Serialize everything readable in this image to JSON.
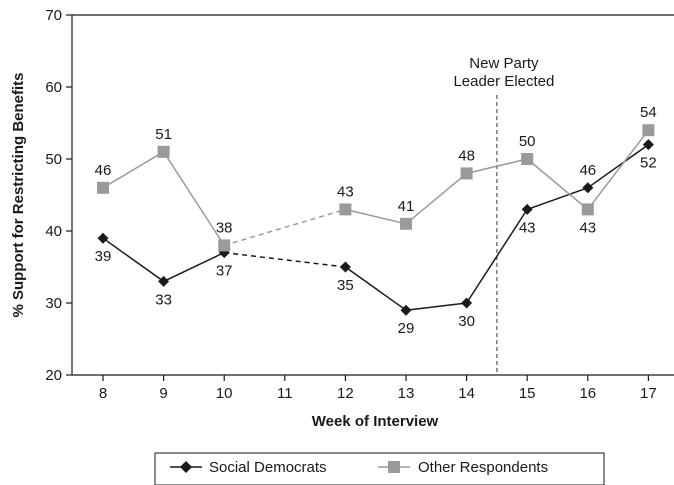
{
  "chart_data": {
    "type": "line",
    "xlabel": "Week of Interview",
    "ylabel": "% Support for Restricting Benefits",
    "ylim": [
      20,
      70
    ],
    "yticks": [
      20,
      30,
      40,
      50,
      60,
      70
    ],
    "categories": [
      "8",
      "9",
      "10",
      "11",
      "12",
      "13",
      "14",
      "15",
      "16",
      "17"
    ],
    "series": [
      {
        "name": "Social Democrats",
        "color": "#1a1a1a",
        "marker": "diamond",
        "x": [
          8,
          9,
          10,
          12,
          13,
          14,
          15,
          16,
          17
        ],
        "values": [
          39,
          33,
          37,
          35,
          29,
          30,
          43,
          46,
          52
        ],
        "labels": [
          "39",
          "33",
          "37",
          "35",
          "29",
          "30",
          "43",
          "46",
          "52"
        ],
        "label_pos": [
          "below",
          "below",
          "below",
          "below",
          "below",
          "below",
          "below",
          "above",
          "below"
        ],
        "dashed_segment": [
          10,
          12
        ]
      },
      {
        "name": "Other Respondents",
        "color": "#9a9a9a",
        "marker": "square",
        "x": [
          8,
          9,
          10,
          12,
          13,
          14,
          15,
          16,
          17
        ],
        "values": [
          46,
          51,
          38,
          43,
          41,
          48,
          50,
          43,
          54
        ],
        "labels": [
          "46",
          "51",
          "38",
          "43",
          "41",
          "48",
          "50",
          "43",
          "54"
        ],
        "label_pos": [
          "above",
          "above",
          "above",
          "above",
          "above",
          "above",
          "above",
          "below",
          "above"
        ],
        "dashed_segment": [
          10,
          12
        ]
      }
    ],
    "annotation": {
      "text_lines": [
        "New Party",
        "Leader Elected"
      ],
      "x": 14.5
    },
    "grid": false,
    "legend": "bottom"
  }
}
